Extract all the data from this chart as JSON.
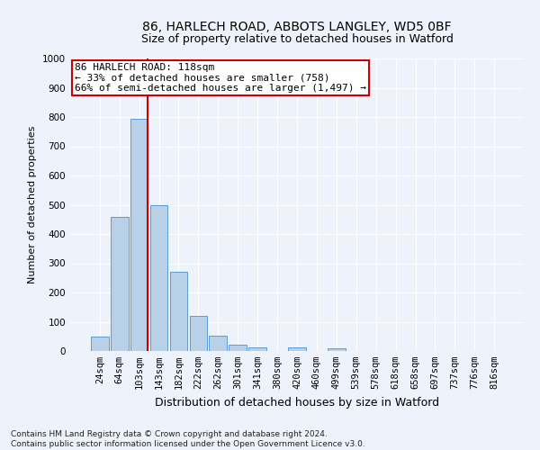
{
  "title_line1": "86, HARLECH ROAD, ABBOTS LANGLEY, WD5 0BF",
  "title_line2": "Size of property relative to detached houses in Watford",
  "xlabel": "Distribution of detached houses by size in Watford",
  "ylabel": "Number of detached properties",
  "categories": [
    "24sqm",
    "64sqm",
    "103sqm",
    "143sqm",
    "182sqm",
    "222sqm",
    "262sqm",
    "301sqm",
    "341sqm",
    "380sqm",
    "420sqm",
    "460sqm",
    "499sqm",
    "539sqm",
    "578sqm",
    "618sqm",
    "658sqm",
    "697sqm",
    "737sqm",
    "776sqm",
    "816sqm"
  ],
  "values": [
    48,
    458,
    795,
    500,
    270,
    120,
    52,
    22,
    12,
    0,
    12,
    0,
    10,
    0,
    0,
    0,
    0,
    0,
    0,
    0,
    0
  ],
  "bar_color": "#b8d0e8",
  "bar_edge_color": "#5b9bd5",
  "highlight_bar_index": 2,
  "highlight_color": "#cc0000",
  "annotation_line1": "86 HARLECH ROAD: 118sqm",
  "annotation_line2": "← 33% of detached houses are smaller (758)",
  "annotation_line3": "66% of semi-detached houses are larger (1,497) →",
  "annotation_box_facecolor": "#ffffff",
  "annotation_box_edgecolor": "#cc0000",
  "ylim": [
    0,
    1000
  ],
  "yticks": [
    0,
    100,
    200,
    300,
    400,
    500,
    600,
    700,
    800,
    900,
    1000
  ],
  "footer_line1": "Contains HM Land Registry data © Crown copyright and database right 2024.",
  "footer_line2": "Contains public sector information licensed under the Open Government Licence v3.0.",
  "bg_color": "#eef2fa",
  "grid_color": "#ffffff",
  "title1_fontsize": 10,
  "title2_fontsize": 9,
  "xlabel_fontsize": 9,
  "ylabel_fontsize": 8,
  "tick_fontsize": 7.5,
  "annotation_fontsize": 8,
  "footer_fontsize": 6.5
}
